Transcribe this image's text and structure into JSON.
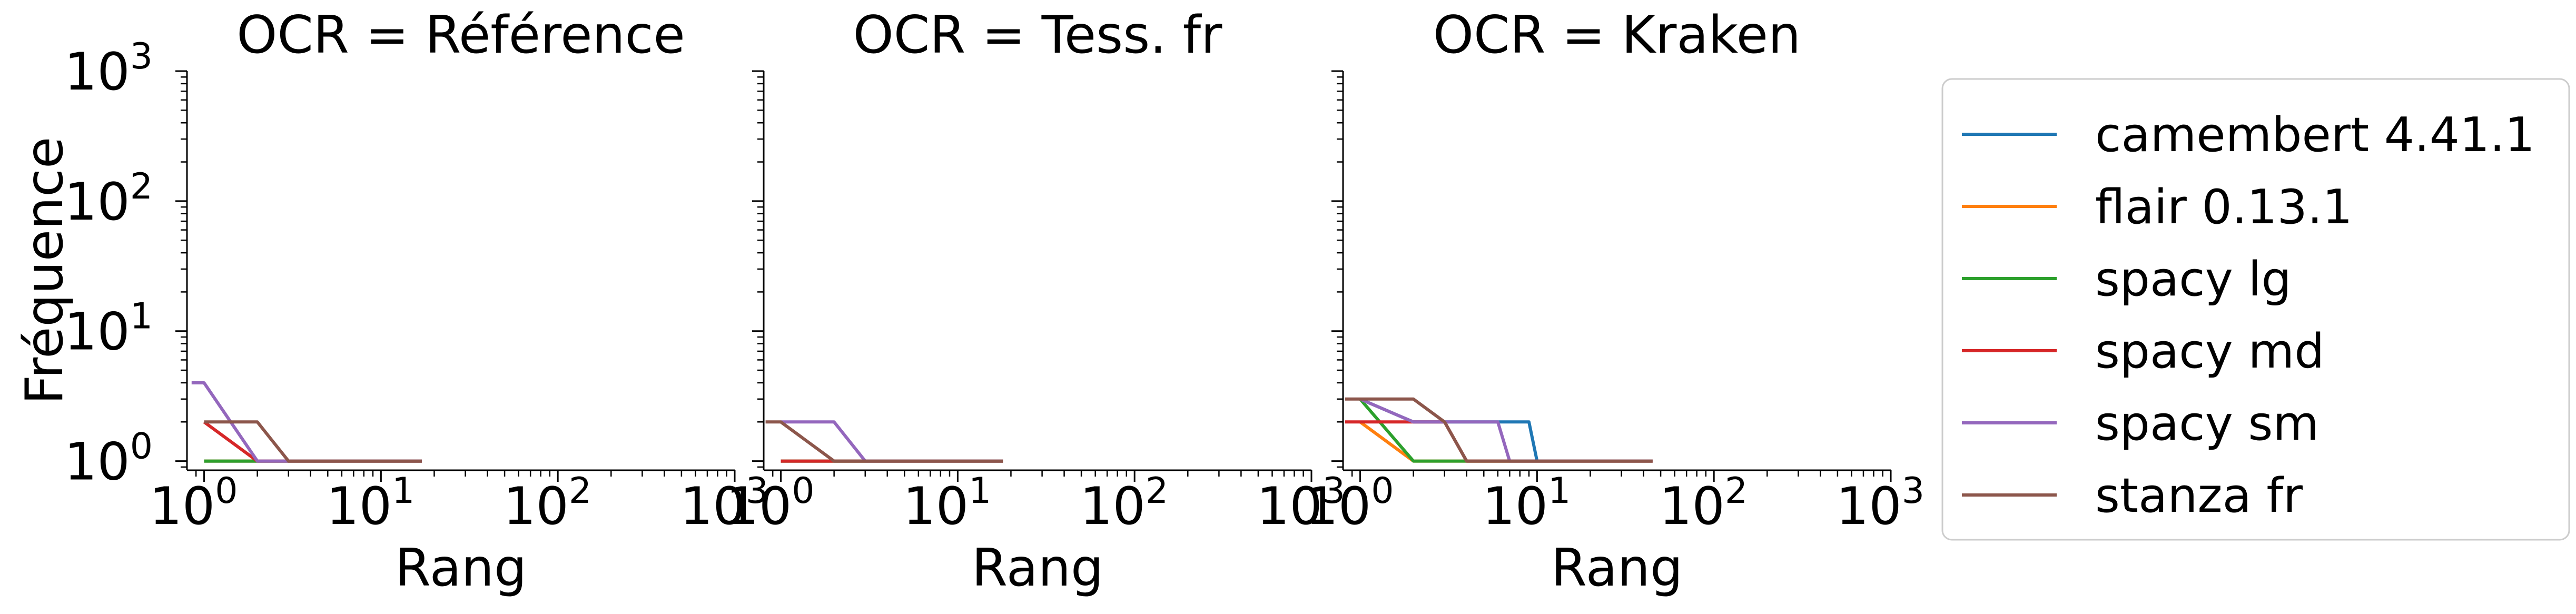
{
  "ylabel": "Fréquence",
  "xlabel": "Rang",
  "tick_base": "10",
  "tick_exponents": [
    "0",
    "1",
    "2",
    "3"
  ],
  "legend": {
    "placement": "right",
    "entries": [
      {
        "name": "camembert 4.41.1",
        "color": "#1f77b4"
      },
      {
        "name": "flair 0.13.1",
        "color": "#ff7f0e"
      },
      {
        "name": "spacy lg",
        "color": "#2ca02c"
      },
      {
        "name": "spacy md",
        "color": "#d62728"
      },
      {
        "name": "spacy sm",
        "color": "#9467bd"
      },
      {
        "name": "stanza fr",
        "color": "#8c564b"
      }
    ]
  },
  "chart_data": [
    {
      "type": "line",
      "title": "OCR = Référence",
      "xscale": "log",
      "yscale": "log",
      "xlim": [
        0.8,
        1000
      ],
      "ylim": [
        0.85,
        1000
      ],
      "grid": false,
      "series": [
        {
          "name": "camembert 4.41.1",
          "x": [
            1,
            2,
            3,
            4,
            5,
            6,
            7,
            8,
            9,
            10,
            11,
            12,
            13,
            14,
            15,
            16,
            17
          ],
          "y": [
            1,
            1,
            1,
            1,
            1,
            1,
            1,
            1,
            1,
            1,
            1,
            1,
            1,
            1,
            1,
            1,
            1
          ]
        },
        {
          "name": "flair 0.13.1",
          "x": [
            1,
            2,
            3,
            4,
            5,
            6,
            7,
            8,
            9,
            10,
            11,
            12,
            13,
            14,
            15,
            16,
            17
          ],
          "y": [
            1,
            1,
            1,
            1,
            1,
            1,
            1,
            1,
            1,
            1,
            1,
            1,
            1,
            1,
            1,
            1,
            1
          ]
        },
        {
          "name": "spacy lg",
          "x": [
            1,
            2,
            3,
            4,
            5,
            6,
            7,
            8,
            9,
            10,
            11,
            12,
            13,
            14,
            15,
            16,
            17
          ],
          "y": [
            1,
            1,
            1,
            1,
            1,
            1,
            1,
            1,
            1,
            1,
            1,
            1,
            1,
            1,
            1,
            1,
            1
          ]
        },
        {
          "name": "spacy md",
          "x": [
            1,
            2,
            3,
            4,
            5,
            6,
            7,
            8,
            9,
            10,
            11,
            12,
            13,
            14,
            15,
            16,
            17
          ],
          "y": [
            2,
            1,
            1,
            1,
            1,
            1,
            1,
            1,
            1,
            1,
            1,
            1,
            1,
            1,
            1,
            1,
            1
          ]
        },
        {
          "name": "spacy sm",
          "x": [
            0.85,
            1,
            2,
            3,
            4,
            5,
            6,
            7,
            8,
            9,
            10,
            11,
            12,
            13,
            14,
            15,
            16,
            17
          ],
          "y": [
            4,
            4,
            1,
            1,
            1,
            1,
            1,
            1,
            1,
            1,
            1,
            1,
            1,
            1,
            1,
            1,
            1,
            1
          ]
        },
        {
          "name": "stanza fr",
          "x": [
            1,
            2,
            3,
            4,
            5,
            6,
            7,
            8,
            9,
            10,
            11,
            12,
            13,
            14,
            15,
            16,
            17
          ],
          "y": [
            2,
            2,
            1,
            1,
            1,
            1,
            1,
            1,
            1,
            1,
            1,
            1,
            1,
            1,
            1,
            1,
            1
          ]
        }
      ]
    },
    {
      "type": "line",
      "title": "OCR = Tess. fr",
      "xscale": "log",
      "yscale": "log",
      "xlim": [
        0.8,
        1000
      ],
      "ylim": [
        0.85,
        1000
      ],
      "grid": false,
      "series": [
        {
          "name": "camembert 4.41.1",
          "x": [
            1,
            2,
            3,
            4,
            5,
            6,
            7,
            8,
            9,
            10,
            11,
            12,
            13,
            14,
            15,
            16,
            17,
            18
          ],
          "y": [
            1,
            1,
            1,
            1,
            1,
            1,
            1,
            1,
            1,
            1,
            1,
            1,
            1,
            1,
            1,
            1,
            1,
            1
          ]
        },
        {
          "name": "flair 0.13.1",
          "x": [
            1,
            2,
            3,
            4,
            5,
            6,
            7,
            8,
            9,
            10,
            11,
            12,
            13,
            14,
            15,
            16,
            17,
            18
          ],
          "y": [
            1,
            1,
            1,
            1,
            1,
            1,
            1,
            1,
            1,
            1,
            1,
            1,
            1,
            1,
            1,
            1,
            1,
            1
          ]
        },
        {
          "name": "spacy lg",
          "x": [
            1,
            2,
            3,
            4,
            5,
            6,
            7,
            8,
            9,
            10,
            11,
            12,
            13,
            14,
            15,
            16,
            17,
            18
          ],
          "y": [
            1,
            1,
            1,
            1,
            1,
            1,
            1,
            1,
            1,
            1,
            1,
            1,
            1,
            1,
            1,
            1,
            1,
            1
          ]
        },
        {
          "name": "spacy md",
          "x": [
            1,
            2,
            3,
            4,
            5,
            6,
            7,
            8,
            9,
            10,
            11,
            12,
            13,
            14,
            15,
            16,
            17,
            18
          ],
          "y": [
            1,
            1,
            1,
            1,
            1,
            1,
            1,
            1,
            1,
            1,
            1,
            1,
            1,
            1,
            1,
            1,
            1,
            1
          ]
        },
        {
          "name": "spacy sm",
          "x": [
            1,
            2,
            3,
            4,
            5,
            6,
            7,
            8,
            9,
            10,
            11,
            12,
            13,
            14,
            15,
            16,
            17,
            18
          ],
          "y": [
            2,
            2,
            1,
            1,
            1,
            1,
            1,
            1,
            1,
            1,
            1,
            1,
            1,
            1,
            1,
            1,
            1,
            1
          ]
        },
        {
          "name": "stanza fr",
          "x": [
            0.82,
            1,
            2,
            3,
            4,
            5,
            6,
            7,
            8,
            9,
            10,
            11,
            12,
            13,
            14,
            15,
            16,
            17,
            18
          ],
          "y": [
            2,
            2,
            1,
            1,
            1,
            1,
            1,
            1,
            1,
            1,
            1,
            1,
            1,
            1,
            1,
            1,
            1,
            1,
            1
          ]
        }
      ]
    },
    {
      "type": "line",
      "title": "OCR = Kraken",
      "xscale": "log",
      "yscale": "log",
      "xlim": [
        0.8,
        1000
      ],
      "ylim": [
        0.85,
        1000
      ],
      "grid": false,
      "series": [
        {
          "name": "camembert 4.41.1",
          "x": [
            1,
            2,
            3,
            4,
            5,
            6,
            7,
            8,
            9,
            10
          ],
          "y": [
            3,
            2,
            2,
            2,
            2,
            2,
            2,
            2,
            2,
            1
          ]
        },
        {
          "name": "flair 0.13.1",
          "x": [
            1,
            2,
            3,
            4,
            5,
            10,
            20,
            30,
            45
          ],
          "y": [
            2,
            1,
            1,
            1,
            1,
            1,
            1,
            1,
            1
          ]
        },
        {
          "name": "spacy lg",
          "x": [
            1,
            2,
            3,
            4,
            5,
            10,
            20,
            30,
            45
          ],
          "y": [
            3,
            1,
            1,
            1,
            1,
            1,
            1,
            1,
            1
          ]
        },
        {
          "name": "spacy md",
          "x": [
            0.82,
            1,
            2,
            3,
            4,
            5,
            10,
            20,
            30,
            45
          ],
          "y": [
            2,
            2,
            2,
            2,
            1,
            1,
            1,
            1,
            1,
            1
          ]
        },
        {
          "name": "spacy sm",
          "x": [
            1,
            2,
            3,
            4,
            5,
            6,
            7,
            10,
            20,
            30,
            45
          ],
          "y": [
            3,
            2,
            2,
            2,
            2,
            2,
            1,
            1,
            1,
            1,
            1
          ]
        },
        {
          "name": "stanza fr",
          "x": [
            0.82,
            1,
            2,
            3,
            4,
            5,
            10,
            20,
            30,
            45
          ],
          "y": [
            3,
            3,
            3,
            2,
            1,
            1,
            1,
            1,
            1,
            1
          ]
        }
      ]
    }
  ]
}
